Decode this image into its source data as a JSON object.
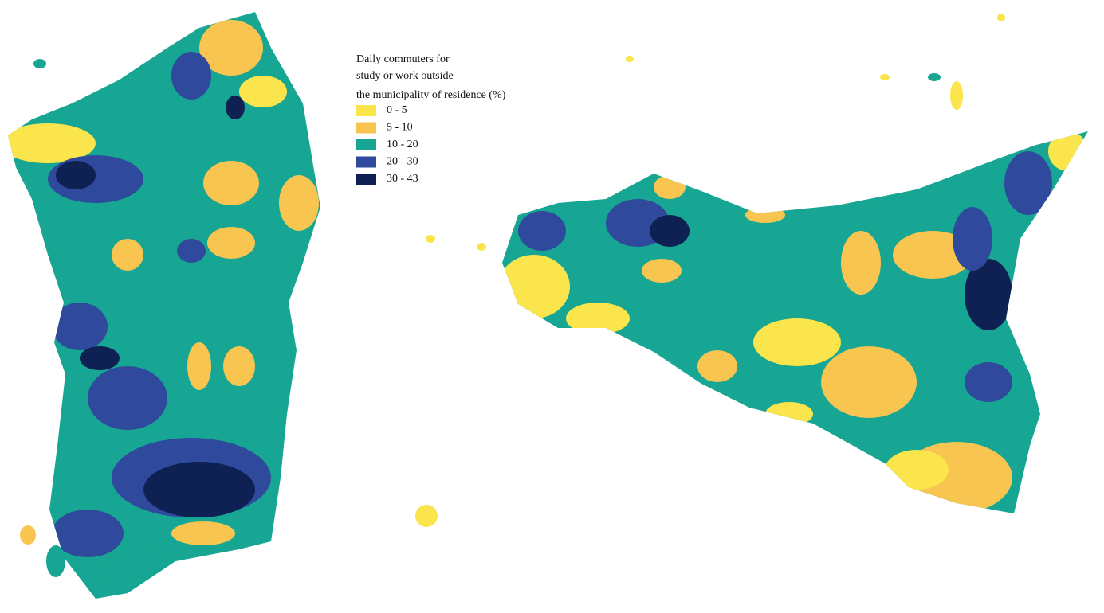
{
  "legend": {
    "title_lines": [
      "Daily commuters for",
      "study or work outside",
      "the municipality of residence (%)"
    ],
    "items": [
      {
        "label": "0 - 5",
        "color": "#fae54c"
      },
      {
        "label": "5 - 10",
        "color": "#f8c550"
      },
      {
        "label": "10 - 20",
        "color": "#17a693"
      },
      {
        "label": "20 - 30",
        "color": "#2f4a9c"
      },
      {
        "label": "30 - 43",
        "color": "#0e2152"
      }
    ]
  }
}
